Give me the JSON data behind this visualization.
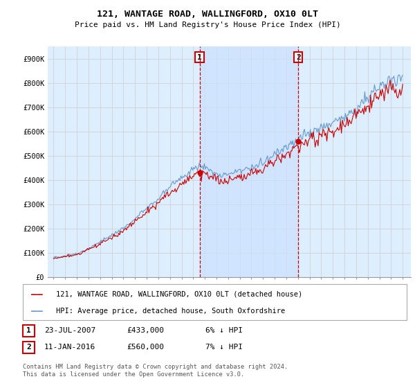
{
  "title": "121, WANTAGE ROAD, WALLINGFORD, OX10 0LT",
  "subtitle": "Price paid vs. HM Land Registry's House Price Index (HPI)",
  "legend_line1": "121, WANTAGE ROAD, WALLINGFORD, OX10 0LT (detached house)",
  "legend_line2": "HPI: Average price, detached house, South Oxfordshire",
  "annotation1_label": "1",
  "annotation1_date": "23-JUL-2007",
  "annotation1_price": "£433,000",
  "annotation1_hpi": "6% ↓ HPI",
  "annotation2_label": "2",
  "annotation2_date": "11-JAN-2016",
  "annotation2_price": "£560,000",
  "annotation2_hpi": "7% ↓ HPI",
  "footer": "Contains HM Land Registry data © Crown copyright and database right 2024.\nThis data is licensed under the Open Government Licence v3.0.",
  "ylim": [
    0,
    950000
  ],
  "yticks": [
    0,
    100000,
    200000,
    300000,
    400000,
    500000,
    600000,
    700000,
    800000,
    900000
  ],
  "ytick_labels": [
    "£0",
    "£100K",
    "£200K",
    "£300K",
    "£400K",
    "£500K",
    "£600K",
    "£700K",
    "£800K",
    "£900K"
  ],
  "sale1_x": 2007.55,
  "sale1_y": 433000,
  "sale2_x": 2016.03,
  "sale2_y": 560000,
  "line_color_red": "#cc0000",
  "line_color_blue": "#6699cc",
  "bg_color": "#ddeeff",
  "shade_color": "#cce0ff",
  "plot_bg": "#ffffff",
  "annotation_box_color": "#cc0000",
  "grid_color": "#cccccc",
  "xlim_left": 1994.5,
  "xlim_right": 2025.7
}
